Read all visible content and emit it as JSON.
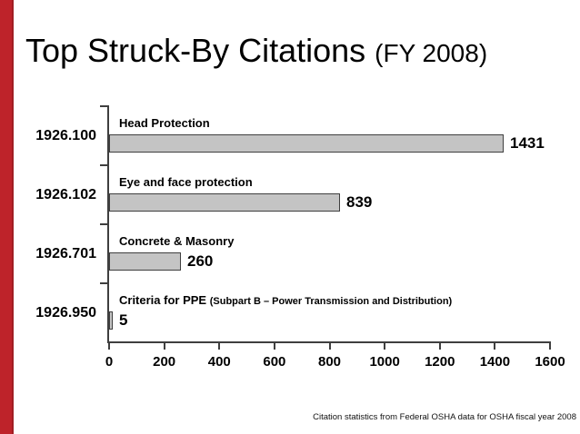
{
  "slide": {
    "title": "Top Struck-By Citations",
    "title_suffix": "(FY 2008)",
    "footer": "Citation statistics from Federal OSHA data for OSHA fiscal year 2008"
  },
  "colors": {
    "accent_red": "#be232a",
    "bar_fill": "#c4c4c4",
    "bar_border": "#3f3f3f",
    "axis": "#3f3f3f",
    "text": "#000000",
    "background": "#ffffff"
  },
  "chart_data": {
    "type": "bar",
    "orientation": "horizontal",
    "title": "Top Struck-By Citations (FY 2008)",
    "categories": [
      "1926.100",
      "1926.102",
      "1926.701",
      "1926.950"
    ],
    "bar_labels": [
      "Head Protection",
      "Eye and face protection",
      "Concrete & Masonry",
      "Criteria for PPE"
    ],
    "bar_label_notes": [
      "",
      "",
      "",
      "(Subpart B – Power Transmission and Distribution)"
    ],
    "values": [
      1431,
      839,
      260,
      5
    ],
    "xlim": [
      0,
      1600
    ],
    "x_ticks": [
      "0",
      "200",
      "400",
      "600",
      "800",
      "1000",
      "1200",
      "1400",
      "1600"
    ],
    "xlabel": "",
    "ylabel": "",
    "grid": false,
    "legend": false,
    "data_labels": true,
    "source_note": "Citation statistics from Federal OSHA data for OSHA fiscal year 2008"
  }
}
